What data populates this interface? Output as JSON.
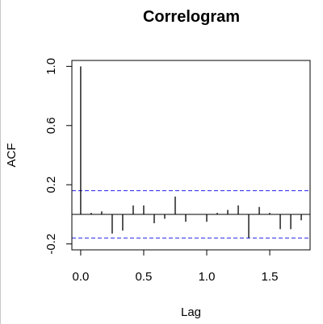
{
  "chart_data": {
    "type": "bar",
    "title": "Correlogram",
    "xlabel": "Lag",
    "ylabel": "ACF",
    "xlim": [
      -0.07,
      1.82
    ],
    "ylim": [
      -0.24,
      1.04
    ],
    "x_ticks": [
      {
        "value": 0.0,
        "label": "0.0"
      },
      {
        "value": 0.5,
        "label": "0.5"
      },
      {
        "value": 1.0,
        "label": "1.0"
      },
      {
        "value": 1.5,
        "label": "1.5"
      }
    ],
    "y_ticks": [
      {
        "value": -0.2,
        "label": "-0.2"
      },
      {
        "value": 0.2,
        "label": "0.2"
      },
      {
        "value": 0.6,
        "label": "0.6"
      },
      {
        "value": 1.0,
        "label": "1.0"
      }
    ],
    "confidence_bound": 0.16,
    "confidence_color": "#3b3bf0",
    "grid": false,
    "lags": [
      0.0,
      0.0833,
      0.1667,
      0.25,
      0.3333,
      0.4167,
      0.5,
      0.5833,
      0.6667,
      0.75,
      0.8333,
      0.9167,
      1.0,
      1.0833,
      1.1667,
      1.25,
      1.3333,
      1.4167,
      1.5,
      1.5833,
      1.6667,
      1.75
    ],
    "values": [
      1.0,
      0.01,
      0.02,
      -0.13,
      -0.11,
      0.06,
      0.06,
      -0.06,
      -0.03,
      0.12,
      -0.05,
      0.0,
      -0.05,
      0.01,
      0.03,
      0.06,
      -0.16,
      0.05,
      0.01,
      -0.1,
      -0.1,
      -0.04
    ]
  }
}
